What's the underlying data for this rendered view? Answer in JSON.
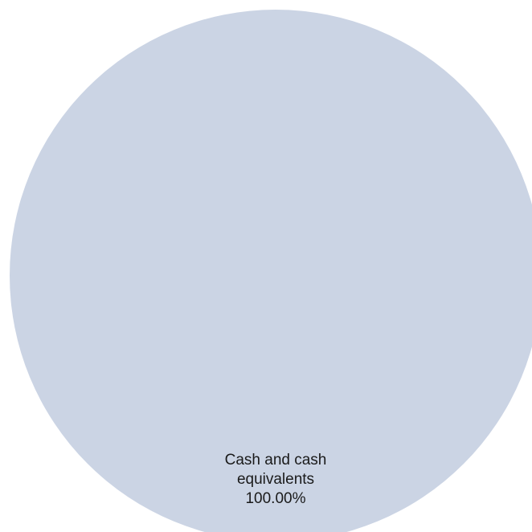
{
  "chart_data": {
    "type": "pie",
    "title": "",
    "slices": [
      {
        "label_lines": [
          "Cash and cash",
          "equivalents"
        ],
        "value": 100.0,
        "percent_label": "100.00%",
        "color": "#cbd4e4"
      }
    ],
    "legend": "none"
  }
}
